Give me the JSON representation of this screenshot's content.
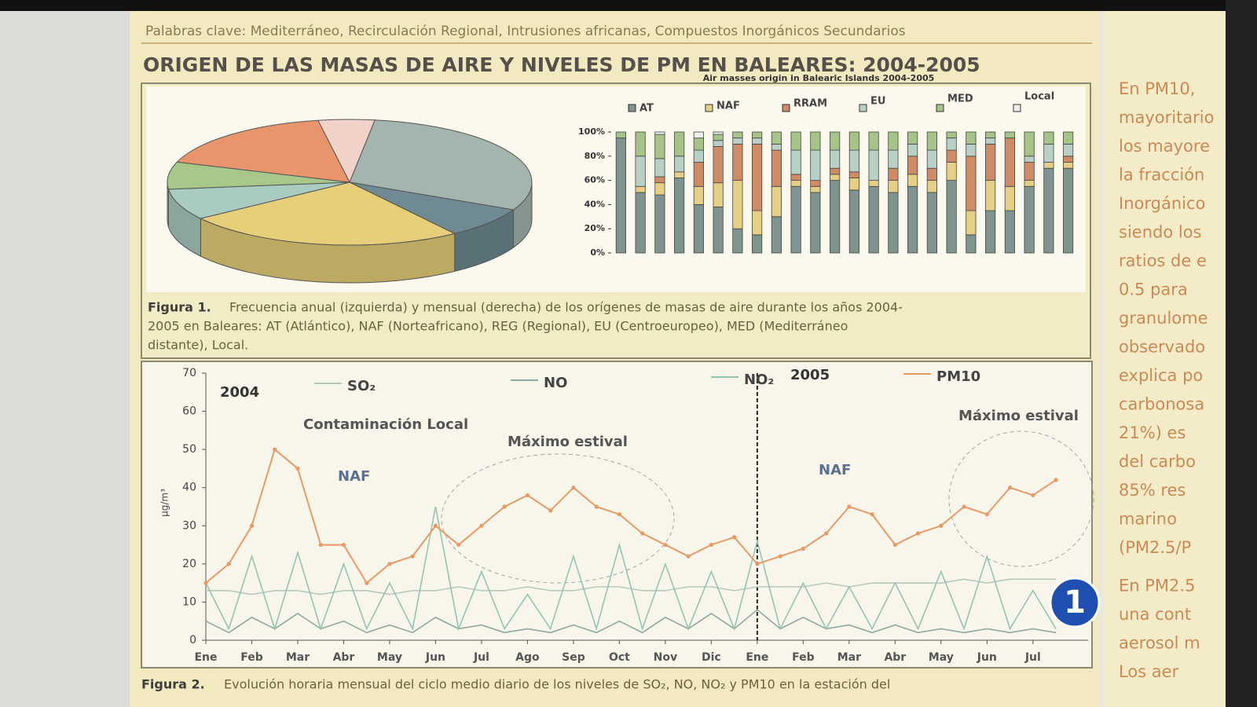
{
  "keywords": "Palabras clave: Mediterráneo, Recirculación Regional, Intrusiones africanas, Compuestos Inorgánicos Secundarios",
  "section_title": "ORIGEN DE LAS MASAS DE AIRE Y NIVELES DE PM EN BALEARES: 2004-2005",
  "figure1_caption": {
    "label": "Figura 1.",
    "lines": [
      "Frecuencia anual (izquierda) y mensual (derecha) de los orígenes de masas de aire durante los años 2004-",
      "2005 en Baleares: AT (Atlántico), NAF (Norteafricano), REG (Regional), EU (Centroeuropeo), MED (Mediterráneo",
      "distante), Local."
    ]
  },
  "figure2_caption": {
    "label": "Figura 2.",
    "text": "Evolución horaria mensual del ciclo medio diario de los niveles de SO₂, NO, NO₂ y PM10 en la estación del"
  },
  "side_text": [
    "En PM10,",
    "mayoritario",
    "los mayore",
    "la fracción",
    "Inorgánico",
    "siendo los",
    "ratios de e",
    "0.5 para",
    "granulome",
    "observado",
    "explica po",
    "carbonosa",
    "21%) es",
    "del carbo",
    "85% res",
    "marino",
    "(PM2.5/P",
    "En PM2.5",
    "una cont",
    "aerosol m",
    "Los aer"
  ],
  "channel_logo": "1",
  "chart_data": [
    {
      "type": "pie",
      "values": [
        5,
        30,
        8,
        25,
        8,
        7,
        17
      ],
      "colors": [
        "#f1d2c8",
        "#a3b5ae",
        "#6f8a92",
        "#e6cf78",
        "#a9cbc2",
        "#a7c88a",
        "#e8946c"
      ]
    },
    {
      "type": "stacked-bar",
      "title": "Air masses origin in Balearic Islands 2004-2005",
      "ylim": [
        0,
        100
      ],
      "yticks": [
        {
          "value": 0,
          "label": "0%"
        },
        {
          "value": 20,
          "label": "20%"
        },
        {
          "value": 40,
          "label": "40%"
        },
        {
          "value": 60,
          "label": "60%"
        },
        {
          "value": 80,
          "label": "80%"
        },
        {
          "value": 100,
          "label": "100%"
        }
      ],
      "series": [
        {
          "name": "AT",
          "color": "#7f948f",
          "values": [
            95,
            50,
            48,
            62,
            40,
            38,
            20,
            15,
            30,
            55,
            50,
            60,
            52,
            55,
            50,
            55,
            50,
            60,
            15,
            35,
            35,
            55,
            70,
            70
          ]
        },
        {
          "name": "NAF",
          "color": "#e5cf84",
          "values": [
            0,
            5,
            10,
            5,
            15,
            20,
            40,
            20,
            25,
            5,
            5,
            5,
            10,
            5,
            10,
            10,
            10,
            15,
            20,
            25,
            20,
            5,
            5,
            5
          ]
        },
        {
          "name": "RRAM",
          "color": "#cf8a66",
          "values": [
            0,
            0,
            5,
            0,
            20,
            30,
            30,
            55,
            30,
            5,
            5,
            5,
            5,
            0,
            10,
            15,
            10,
            10,
            45,
            30,
            40,
            15,
            0,
            5
          ]
        },
        {
          "name": "EU",
          "color": "#b9d0c6",
          "values": [
            0,
            25,
            15,
            13,
            10,
            5,
            5,
            5,
            5,
            20,
            25,
            15,
            18,
            25,
            15,
            10,
            15,
            10,
            10,
            5,
            0,
            5,
            15,
            10
          ]
        },
        {
          "name": "MED",
          "color": "#a6c488",
          "values": [
            5,
            20,
            20,
            20,
            10,
            5,
            5,
            5,
            10,
            15,
            15,
            15,
            15,
            15,
            15,
            10,
            15,
            5,
            10,
            5,
            5,
            20,
            10,
            10
          ]
        },
        {
          "name": "Local",
          "color": "#eeeeee",
          "values": [
            0,
            0,
            2,
            0,
            5,
            2,
            0,
            0,
            0,
            0,
            0,
            0,
            0,
            0,
            0,
            0,
            0,
            0,
            0,
            0,
            0,
            0,
            0,
            0
          ]
        }
      ]
    },
    {
      "type": "line",
      "ylabel": "µg/m³",
      "ylim": [
        0,
        70
      ],
      "yticks": [
        0,
        10,
        20,
        30,
        40,
        50,
        60,
        70
      ],
      "xlim": [
        0,
        19.2
      ],
      "xticks": [
        {
          "value": 0,
          "label": "Ene"
        },
        {
          "value": 1,
          "label": "Feb"
        },
        {
          "value": 2,
          "label": "Mar"
        },
        {
          "value": 3,
          "label": "Abr"
        },
        {
          "value": 4,
          "label": "May"
        },
        {
          "value": 5,
          "label": "Jun"
        },
        {
          "value": 6,
          "label": "Jul"
        },
        {
          "value": 7,
          "label": "Ago"
        },
        {
          "value": 8,
          "label": "Sep"
        },
        {
          "value": 9,
          "label": "Oct"
        },
        {
          "value": 10,
          "label": "Nov"
        },
        {
          "value": 11,
          "label": "Dic"
        },
        {
          "value": 12,
          "label": "Ene"
        },
        {
          "value": 13,
          "label": "Feb"
        },
        {
          "value": 14,
          "label": "Mar"
        },
        {
          "value": 15,
          "label": "Abr"
        },
        {
          "value": 16,
          "label": "May"
        },
        {
          "value": 17,
          "label": "Jun"
        },
        {
          "value": 18,
          "label": "Jul"
        }
      ],
      "x": [
        0,
        0.5,
        1,
        1.5,
        2,
        2.5,
        3,
        3.5,
        4,
        4.5,
        5,
        5.5,
        6,
        6.5,
        7,
        7.5,
        8,
        8.5,
        9,
        9.5,
        10,
        10.5,
        11,
        11.5,
        12,
        12.5,
        13,
        13.5,
        14,
        14.5,
        15,
        15.5,
        16,
        16.5,
        17,
        17.5,
        18,
        18.5
      ],
      "series": [
        {
          "name": "SO₂",
          "color": "#b8c8bc",
          "values": [
            13,
            13,
            12,
            13,
            13,
            12,
            13,
            13,
            12,
            13,
            13,
            14,
            13,
            13,
            14,
            13,
            13,
            14,
            14,
            13,
            13,
            14,
            14,
            13,
            14,
            14,
            14,
            15,
            14,
            15,
            15,
            15,
            15,
            16,
            15,
            16,
            16,
            16
          ]
        },
        {
          "name": "NO",
          "color": "#8fa8a0",
          "values": [
            5,
            2,
            6,
            3,
            7,
            3,
            5,
            2,
            4,
            2,
            6,
            3,
            4,
            2,
            3,
            2,
            4,
            2,
            5,
            2,
            6,
            3,
            7,
            3,
            8,
            3,
            6,
            3,
            4,
            2,
            4,
            2,
            3,
            2,
            3,
            2,
            3,
            2
          ]
        },
        {
          "name": "NO₂",
          "color": "#93c4b4",
          "values": [
            15,
            3,
            22,
            3,
            23,
            3,
            20,
            3,
            15,
            3,
            35,
            3,
            18,
            3,
            12,
            3,
            22,
            3,
            25,
            3,
            20,
            3,
            18,
            3,
            26,
            3,
            15,
            3,
            14,
            3,
            15,
            3,
            18,
            3,
            22,
            3,
            13,
            3
          ]
        },
        {
          "name": "PM10",
          "color": "#e69a66",
          "values": [
            15,
            20,
            30,
            50,
            45,
            25,
            25,
            15,
            20,
            22,
            30,
            25,
            30,
            35,
            38,
            34,
            40,
            35,
            33,
            28,
            25,
            22,
            25,
            27,
            20,
            22,
            24,
            28,
            35,
            33,
            25,
            28,
            30,
            35,
            33,
            40,
            38,
            42
          ]
        }
      ],
      "annotations": [
        "2004",
        "2005",
        "Contaminación Local",
        "NAF",
        "Máximo estival",
        "NAF",
        "Máximo estival"
      ]
    }
  ]
}
